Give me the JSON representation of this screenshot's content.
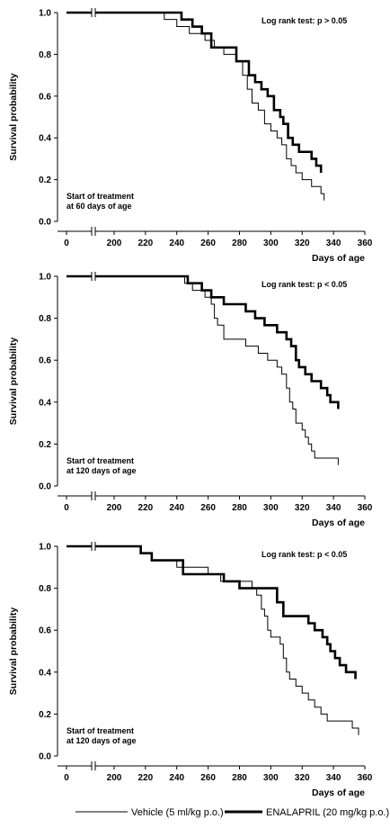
{
  "chart_data": [
    {
      "type": "line",
      "step": true,
      "xlabel": "Days of age",
      "ylabel": "Survival probability",
      "annotation": "Log rank test: p > 0.05",
      "note_lines": [
        "Start of treatment",
        "at 60 days of age"
      ],
      "xlim": [
        0,
        360
      ],
      "ylim": [
        0,
        1
      ],
      "x_ticks": [
        0,
        200,
        220,
        240,
        260,
        280,
        300,
        320,
        340,
        360
      ],
      "y_ticks": [
        0,
        0.2,
        0.4,
        0.6,
        0.8,
        1
      ],
      "y_tick_labels": [
        "0.0",
        "0.2",
        "0.4",
        "0.6",
        "0.8",
        "1.0"
      ],
      "axis_break": true,
      "grid": false,
      "series": [
        {
          "name": "Vehicle (5 ml/kg p.o.)",
          "style": "thin",
          "x": [
            0,
            232,
            240,
            248,
            258,
            264,
            270,
            278,
            282,
            285,
            288,
            292,
            296,
            300,
            304,
            307,
            310,
            313,
            316,
            320,
            326,
            332,
            334
          ],
          "y": [
            1.0,
            0.967,
            0.933,
            0.9,
            0.867,
            0.833,
            0.8,
            0.767,
            0.7,
            0.633,
            0.567,
            0.533,
            0.467,
            0.433,
            0.4,
            0.367,
            0.3,
            0.267,
            0.233,
            0.2,
            0.167,
            0.133,
            0.1
          ]
        },
        {
          "name": "ENALAPRIL (20 mg/kg p.o.)",
          "style": "thick",
          "x": [
            0,
            243,
            250,
            256,
            262,
            278,
            286,
            290,
            294,
            298,
            302,
            306,
            308,
            311,
            314,
            318,
            326,
            329,
            332
          ],
          "y": [
            1.0,
            0.967,
            0.933,
            0.9,
            0.833,
            0.767,
            0.7,
            0.667,
            0.633,
            0.6,
            0.533,
            0.5,
            0.467,
            0.4,
            0.367,
            0.333,
            0.3,
            0.267,
            0.233
          ]
        }
      ]
    },
    {
      "type": "line",
      "step": true,
      "xlabel": "Days of age",
      "ylabel": "Survival probability",
      "annotation": "Log rank test: p < 0.05",
      "note_lines": [
        "Start of treatment",
        "at 120 days of age"
      ],
      "xlim": [
        0,
        360
      ],
      "ylim": [
        0,
        1
      ],
      "x_ticks": [
        0,
        200,
        220,
        240,
        260,
        280,
        300,
        320,
        340,
        360
      ],
      "y_ticks": [
        0,
        0.2,
        0.4,
        0.6,
        0.8,
        1
      ],
      "y_tick_labels": [
        "0.0",
        "0.2",
        "0.4",
        "0.6",
        "0.8",
        "1.0"
      ],
      "axis_break": true,
      "grid": false,
      "series": [
        {
          "name": "Vehicle (5 ml/kg p.o.)",
          "style": "thin",
          "x": [
            0,
            245,
            250,
            258,
            262,
            264,
            266,
            270,
            284,
            292,
            298,
            304,
            307,
            310,
            312,
            314,
            316,
            320,
            322,
            324,
            326,
            328,
            332,
            340,
            343
          ],
          "y": [
            1.0,
            0.967,
            0.933,
            0.9,
            0.867,
            0.8,
            0.767,
            0.7,
            0.667,
            0.633,
            0.6,
            0.567,
            0.533,
            0.467,
            0.4,
            0.367,
            0.3,
            0.267,
            0.233,
            0.2,
            0.167,
            0.133,
            0.133,
            0.133,
            0.1
          ]
        },
        {
          "name": "ENALAPRIL (20 mg/kg p.o.)",
          "style": "thick",
          "x": [
            0,
            247,
            256,
            262,
            270,
            284,
            290,
            296,
            304,
            310,
            313,
            316,
            318,
            322,
            326,
            332,
            336,
            338,
            343
          ],
          "y": [
            1.0,
            0.967,
            0.933,
            0.9,
            0.867,
            0.833,
            0.8,
            0.767,
            0.733,
            0.7,
            0.667,
            0.6,
            0.567,
            0.533,
            0.5,
            0.467,
            0.433,
            0.4,
            0.367
          ]
        }
      ]
    },
    {
      "type": "line",
      "step": true,
      "xlabel": "Days of age",
      "ylabel": "Survival probability",
      "annotation": "Log rank test: p < 0.05",
      "note_lines": [
        "Start of treatment",
        "at 120 days of age"
      ],
      "xlim": [
        0,
        360
      ],
      "ylim": [
        0,
        1
      ],
      "x_ticks": [
        0,
        200,
        220,
        240,
        260,
        280,
        300,
        320,
        340,
        360
      ],
      "y_ticks": [
        0,
        0.2,
        0.4,
        0.6,
        0.8,
        1
      ],
      "y_tick_labels": [
        "0.0",
        "0.2",
        "0.4",
        "0.6",
        "0.8",
        "1.0"
      ],
      "axis_break": true,
      "grid": false,
      "series": [
        {
          "name": "Vehicle (5 ml/kg p.o.)",
          "style": "thin",
          "x": [
            0,
            217,
            224,
            240,
            260,
            268,
            288,
            291,
            294,
            296,
            298,
            300,
            306,
            308,
            310,
            312,
            316,
            320,
            324,
            328,
            332,
            336,
            352,
            356
          ],
          "y": [
            1.0,
            0.967,
            0.933,
            0.9,
            0.867,
            0.833,
            0.8,
            0.767,
            0.7,
            0.667,
            0.6,
            0.567,
            0.533,
            0.467,
            0.4,
            0.367,
            0.333,
            0.3,
            0.267,
            0.233,
            0.2,
            0.167,
            0.133,
            0.1
          ]
        },
        {
          "name": "ENALAPRIL (20 mg/kg p.o.)",
          "style": "thick",
          "x": [
            0,
            217,
            224,
            244,
            270,
            280,
            288,
            304,
            308,
            324,
            328,
            333,
            336,
            338,
            341,
            344,
            348,
            354
          ],
          "y": [
            1.0,
            0.967,
            0.933,
            0.867,
            0.833,
            0.8,
            0.8,
            0.733,
            0.667,
            0.633,
            0.6,
            0.567,
            0.533,
            0.5,
            0.467,
            0.433,
            0.4,
            0.367
          ]
        }
      ]
    }
  ],
  "legend": {
    "items": [
      {
        "label": "Vehicle (5 ml/kg p.o.)",
        "style": "thin"
      },
      {
        "label": "ENALAPRIL (20 mg/kg p.o.)",
        "style": "thick"
      }
    ]
  }
}
